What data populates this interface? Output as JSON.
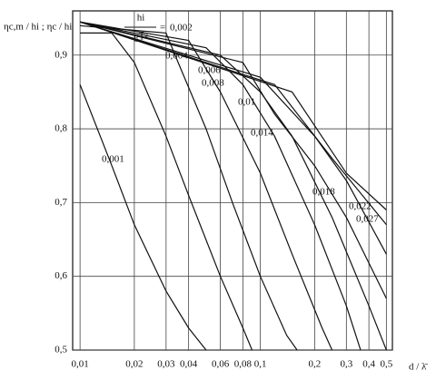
{
  "chart_data": {
    "type": "line",
    "y_axis_label": "ηc,m / hi ; ηc / hi",
    "x_axis_label": "d / λ̄",
    "annotation": {
      "numerator": "hi",
      "denominator": "gT̄²",
      "equals": "="
    },
    "log_x": true,
    "grid": true,
    "color": "#111111",
    "xlim": [
      0.0091,
      0.54
    ],
    "ylim": [
      0.5,
      0.96
    ],
    "xticks": [
      {
        "value": 0.01,
        "label": "0,01"
      },
      {
        "value": 0.02,
        "label": "0,02"
      },
      {
        "value": 0.03,
        "label": "0,03"
      },
      {
        "value": 0.04,
        "label": "0,04"
      },
      {
        "value": 0.06,
        "label": "0,06"
      },
      {
        "value": 0.08,
        "label": "0,08"
      },
      {
        "value": 0.1,
        "label": "0,1"
      },
      {
        "value": 0.2,
        "label": "0,2"
      },
      {
        "value": 0.3,
        "label": "0,3"
      },
      {
        "value": 0.4,
        "label": "0,4"
      },
      {
        "value": 0.5,
        "label": "0,5"
      }
    ],
    "yticks": [
      {
        "value": 0.5,
        "label": "0,5"
      },
      {
        "value": 0.6,
        "label": "0,6"
      },
      {
        "value": 0.7,
        "label": "0,7"
      },
      {
        "value": 0.8,
        "label": "0,8"
      },
      {
        "value": 0.9,
        "label": "0,9"
      }
    ],
    "series": [
      {
        "name": "0,001",
        "x": [
          0.01,
          0.015,
          0.02,
          0.03,
          0.04,
          0.05
        ],
        "values": [
          0.86,
          0.75,
          0.67,
          0.58,
          0.53,
          0.5
        ]
      },
      {
        "name": "0,002",
        "x": [
          0.01,
          0.015,
          0.02,
          0.03,
          0.04,
          0.06,
          0.08,
          0.09
        ],
        "values": [
          0.93,
          0.93,
          0.89,
          0.79,
          0.71,
          0.6,
          0.53,
          0.5
        ]
      },
      {
        "name": "0,004",
        "x": [
          0.01,
          0.03,
          0.035,
          0.05,
          0.07,
          0.1,
          0.14,
          0.16
        ],
        "values": [
          0.94,
          0.93,
          0.89,
          0.8,
          0.7,
          0.6,
          0.52,
          0.5
        ]
      },
      {
        "name": "0,006",
        "x": [
          0.01,
          0.04,
          0.06,
          0.1,
          0.15,
          0.22,
          0.25
        ],
        "values": [
          0.945,
          0.92,
          0.85,
          0.74,
          0.63,
          0.53,
          0.5
        ]
      },
      {
        "name": "0,008",
        "x": [
          0.01,
          0.05,
          0.08,
          0.12,
          0.2,
          0.3,
          0.36
        ],
        "values": [
          0.945,
          0.91,
          0.86,
          0.79,
          0.67,
          0.56,
          0.5
        ]
      },
      {
        "name": "0,01",
        "x": [
          0.01,
          0.06,
          0.1,
          0.15,
          0.25,
          0.4,
          0.5
        ],
        "values": [
          0.945,
          0.9,
          0.85,
          0.79,
          0.68,
          0.56,
          0.5
        ]
      },
      {
        "name": "0,014",
        "x": [
          0.01,
          0.08,
          0.12,
          0.2,
          0.3,
          0.5
        ],
        "values": [
          0.945,
          0.89,
          0.82,
          0.75,
          0.68,
          0.57
        ]
      },
      {
        "name": "0,018",
        "x": [
          0.01,
          0.1,
          0.2,
          0.3,
          0.5
        ],
        "values": [
          0.945,
          0.87,
          0.79,
          0.73,
          0.63
        ]
      },
      {
        "name": "0,022",
        "x": [
          0.01,
          0.12,
          0.25,
          0.5
        ],
        "values": [
          0.945,
          0.86,
          0.76,
          0.67
        ]
      },
      {
        "name": "0,027",
        "x": [
          0.01,
          0.15,
          0.3,
          0.5
        ],
        "values": [
          0.945,
          0.85,
          0.74,
          0.69
        ]
      }
    ]
  }
}
